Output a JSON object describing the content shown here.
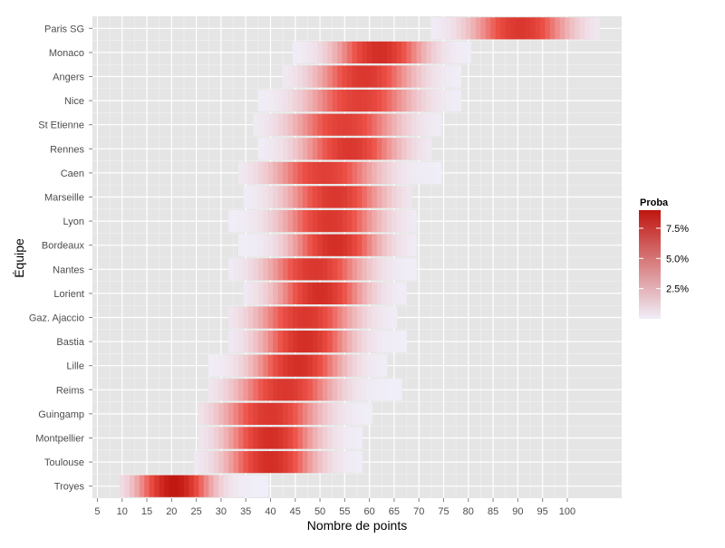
{
  "chart_data": {
    "type": "heatmap",
    "xlabel": "Nombre de points",
    "ylabel": "Équipe",
    "x_ticks": [
      5,
      10,
      15,
      20,
      25,
      30,
      35,
      40,
      45,
      50,
      55,
      60,
      65,
      70,
      75,
      80,
      85,
      90,
      95,
      100
    ],
    "xlim": [
      4,
      111
    ],
    "grid": true,
    "legend": {
      "title": "Proba",
      "position": "right",
      "labels": [
        "7.5%",
        "5.0%",
        "2.5%"
      ],
      "values": [
        0.075,
        0.05,
        0.025
      ],
      "min": 0,
      "max": 0.09,
      "low_color": "#f0eef8",
      "high_color": "#c0150f"
    },
    "teams": [
      {
        "name": "Paris SG",
        "min": 73,
        "max": 106,
        "mean": 90.5,
        "sd": 6.0
      },
      {
        "name": "Monaco",
        "min": 45,
        "max": 80,
        "mean": 62,
        "sd": 5.5
      },
      {
        "name": "Angers",
        "min": 43,
        "max": 78,
        "mean": 59,
        "sd": 6.0
      },
      {
        "name": "Nice",
        "min": 38,
        "max": 78,
        "mean": 58,
        "sd": 6.5
      },
      {
        "name": "St Etienne",
        "min": 37,
        "max": 74,
        "mean": 55,
        "sd": 6.5
      },
      {
        "name": "Rennes",
        "min": 38,
        "max": 72,
        "mean": 56,
        "sd": 6.0
      },
      {
        "name": "Caen",
        "min": 34,
        "max": 74,
        "mean": 51,
        "sd": 6.5
      },
      {
        "name": "Marseille",
        "min": 35,
        "max": 68,
        "mean": 53,
        "sd": 6.0
      },
      {
        "name": "Lyon",
        "min": 32,
        "max": 69,
        "mean": 52,
        "sd": 6.0
      },
      {
        "name": "Bordeaux",
        "min": 34,
        "max": 69,
        "mean": 53,
        "sd": 5.5
      },
      {
        "name": "Nantes",
        "min": 32,
        "max": 69,
        "mean": 49,
        "sd": 6.0
      },
      {
        "name": "Lorient",
        "min": 35,
        "max": 67,
        "mean": 50,
        "sd": 5.5
      },
      {
        "name": "Gaz. Ajaccio",
        "min": 32,
        "max": 65,
        "mean": 47,
        "sd": 6.0
      },
      {
        "name": "Bastia",
        "min": 32,
        "max": 67,
        "mean": 47,
        "sd": 5.5
      },
      {
        "name": "Lille",
        "min": 28,
        "max": 63,
        "mean": 45.5,
        "sd": 5.5
      },
      {
        "name": "Reims",
        "min": 28,
        "max": 66,
        "mean": 43,
        "sd": 6.0
      },
      {
        "name": "Guingamp",
        "min": 26,
        "max": 60,
        "mean": 40,
        "sd": 6.0
      },
      {
        "name": "Montpellier",
        "min": 26,
        "max": 58,
        "mean": 40,
        "sd": 5.5
      },
      {
        "name": "Toulouse",
        "min": 25,
        "max": 58,
        "mean": 40,
        "sd": 5.5
      },
      {
        "name": "Troyes",
        "min": 10,
        "max": 39,
        "mean": 20.5,
        "sd": 4.5
      }
    ]
  }
}
